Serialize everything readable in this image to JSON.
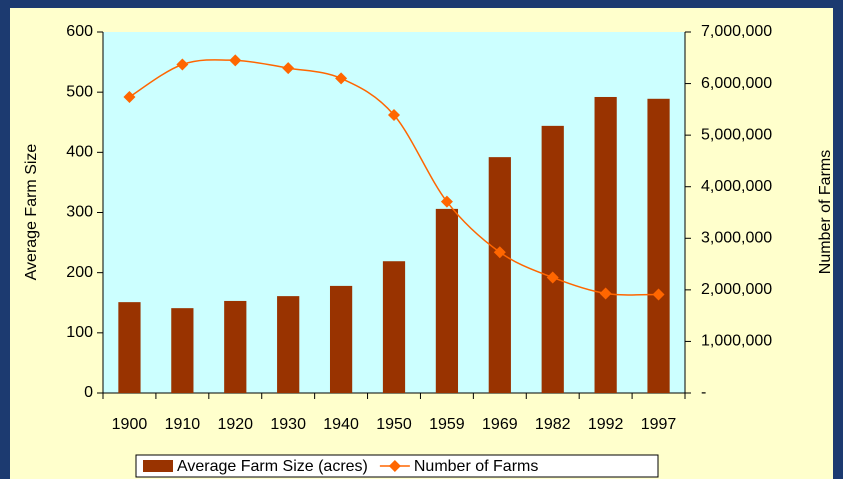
{
  "chart_data": {
    "type": "bar",
    "categories": [
      "1900",
      "1910",
      "1920",
      "1930",
      "1940",
      "1950",
      "1959",
      "1969",
      "1982",
      "1992",
      "1997"
    ],
    "series": [
      {
        "name": "Average Farm Size (acres)",
        "type": "bar",
        "axis": "y",
        "color": "#993300",
        "values": [
          151,
          141,
          153,
          161,
          178,
          219,
          306,
          392,
          444,
          492,
          489
        ]
      },
      {
        "name": "Number of Farms",
        "type": "line",
        "axis": "y2",
        "color": "#ff6600",
        "values": [
          5740000,
          6370000,
          6450000,
          6300000,
          6100000,
          5390000,
          3710000,
          2730000,
          2240000,
          1930000,
          1910000
        ]
      }
    ],
    "y_label": "Average Farm Size",
    "y2_label": "Number of Farms",
    "ylim": [
      0,
      600
    ],
    "yticks": [
      0,
      100,
      200,
      300,
      400,
      500,
      600
    ],
    "y2lim": [
      0,
      7000000
    ],
    "y2ticks": [
      {
        "value": 0,
        "label": "-"
      },
      {
        "value": 1000000,
        "label": "1,000,000"
      },
      {
        "value": 2000000,
        "label": "2,000,000"
      },
      {
        "value": 3000000,
        "label": "3,000,000"
      },
      {
        "value": 4000000,
        "label": "4,000,000"
      },
      {
        "value": 5000000,
        "label": "5,000,000"
      },
      {
        "value": 6000000,
        "label": "6,000,000"
      },
      {
        "value": 7000000,
        "label": "7,000,000"
      }
    ],
    "legend": "bottom"
  }
}
